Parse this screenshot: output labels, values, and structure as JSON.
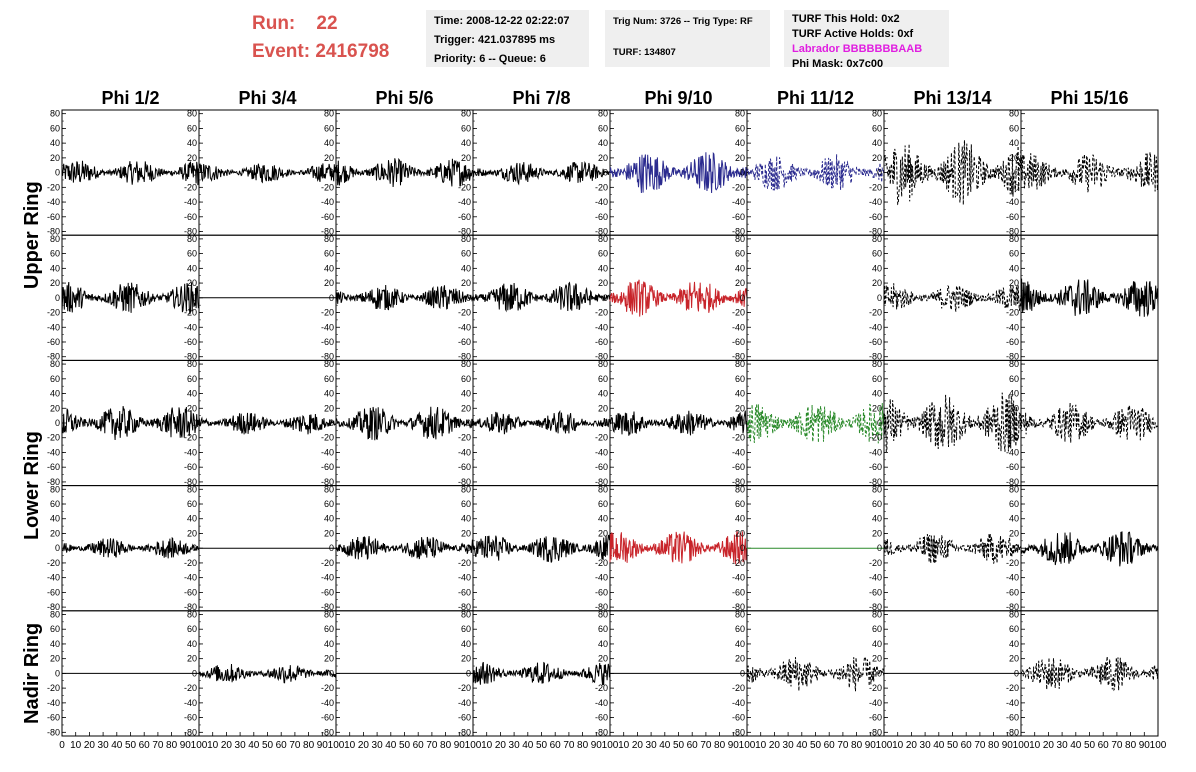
{
  "header": {
    "run_label": "Run:",
    "run_value": "22",
    "event_label": "Event:",
    "event_value": "2416798"
  },
  "info": {
    "time": "Time: 2008-12-22 02:22:07",
    "trigger": "Trigger: 421.037895 ms",
    "priority_queue": "Priority: 6 -- Queue: 6",
    "trig_num_type": "Trig Num: 3726 -- Trig Type: RF",
    "turf": "TURF: 134807",
    "turf_this_hold": "TURF This Hold: 0x2",
    "turf_active_holds": "TURF Active Holds: 0xf",
    "labrador": "Labrador BBBBBBBAAB",
    "phi_mask": "Phi Mask: 0x7c00"
  },
  "columns": [
    "Phi 1/2",
    "Phi 3/4",
    "Phi 5/6",
    "Phi 7/8",
    "Phi 9/10",
    "Phi 11/12",
    "Phi 13/14",
    "Phi 15/16"
  ],
  "row_labels": [
    "Upper Ring",
    "Lower Ring",
    "Nadir Ring"
  ],
  "colors": {
    "blue": "#2b2b8f",
    "red": "#c8242a",
    "green": "#2a8a2a",
    "black": "#000000",
    "header_red": "#d9534f",
    "labrador_magenta": "#e01ee0"
  },
  "chart_data": {
    "type": "line",
    "xlim": [
      0,
      100
    ],
    "ylim": [
      -85,
      85
    ],
    "y_ticks": [
      80,
      60,
      40,
      20,
      0,
      -20,
      -40,
      -60,
      -80
    ],
    "x_ticks": [
      0,
      10,
      20,
      30,
      40,
      50,
      60,
      70,
      80,
      90,
      100
    ],
    "rows": 5,
    "cols": 8,
    "panels": [
      [
        {
          "color": "black",
          "amp": 18,
          "dash": false
        },
        {
          "color": "black",
          "amp": 14,
          "dash": false
        },
        {
          "color": "black",
          "amp": 20,
          "dash": false
        },
        {
          "color": "black",
          "amp": 16,
          "dash": false
        },
        {
          "color": "blue",
          "amp": 30,
          "dash": false
        },
        {
          "color": "blue",
          "amp": 25,
          "dash": true
        },
        {
          "color": "black",
          "amp": 45,
          "dash": true
        },
        {
          "color": "black",
          "amp": 28,
          "dash": true
        }
      ],
      [
        {
          "color": "black",
          "amp": 22,
          "dash": false
        },
        {
          "color": "black",
          "amp": 0,
          "dash": false
        },
        {
          "color": "black",
          "amp": 18,
          "dash": false
        },
        {
          "color": "black",
          "amp": 22,
          "dash": false
        },
        {
          "color": "red",
          "amp": 26,
          "dash": false
        },
        {
          "color": "black",
          "amp": 0,
          "dash": false,
          "none": true
        },
        {
          "color": "black",
          "amp": 20,
          "dash": true
        },
        {
          "color": "black",
          "amp": 28,
          "dash": false
        }
      ],
      [
        {
          "color": "black",
          "amp": 24,
          "dash": false
        },
        {
          "color": "black",
          "amp": 16,
          "dash": false
        },
        {
          "color": "black",
          "amp": 24,
          "dash": false
        },
        {
          "color": "black",
          "amp": 16,
          "dash": false
        },
        {
          "color": "black",
          "amp": 18,
          "dash": false
        },
        {
          "color": "green",
          "amp": 30,
          "dash": true
        },
        {
          "color": "black",
          "amp": 42,
          "dash": true
        },
        {
          "color": "black",
          "amp": 28,
          "dash": true
        }
      ],
      [
        {
          "color": "black",
          "amp": 14,
          "dash": false
        },
        {
          "color": "black",
          "amp": 0,
          "dash": false
        },
        {
          "color": "black",
          "amp": 18,
          "dash": false
        },
        {
          "color": "black",
          "amp": 20,
          "dash": false
        },
        {
          "color": "red",
          "amp": 24,
          "dash": false
        },
        {
          "color": "green",
          "amp": 0,
          "dash": false
        },
        {
          "color": "black",
          "amp": 22,
          "dash": true
        },
        {
          "color": "black",
          "amp": 26,
          "dash": false
        }
      ],
      [
        {
          "color": "black",
          "amp": 0,
          "dash": false
        },
        {
          "color": "black",
          "amp": 14,
          "dash": false
        },
        {
          "color": "black",
          "amp": 0,
          "dash": false
        },
        {
          "color": "black",
          "amp": 16,
          "dash": false
        },
        {
          "color": "black",
          "amp": 0,
          "dash": false
        },
        {
          "color": "black",
          "amp": 25,
          "dash": true
        },
        {
          "color": "black",
          "amp": 0,
          "dash": false
        },
        {
          "color": "black",
          "amp": 25,
          "dash": true
        }
      ]
    ]
  }
}
